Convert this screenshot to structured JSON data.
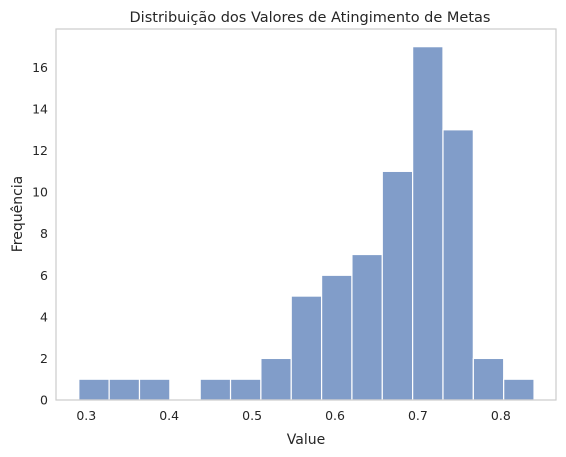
{
  "chart_data": {
    "type": "bar",
    "title": "Distribuição dos Valores de Atingimento de Metas",
    "xlabel": "Value",
    "ylabel": "Frequência",
    "xlim": [
      0.2635,
      0.8665
    ],
    "ylim": [
      0,
      17.85
    ],
    "grid": false,
    "bar_color": "#819dc9",
    "bins": [
      {
        "x0": 0.291,
        "x1": 0.3276,
        "count": 1
      },
      {
        "x0": 0.3276,
        "x1": 0.3642,
        "count": 1
      },
      {
        "x0": 0.3642,
        "x1": 0.4008,
        "count": 1
      },
      {
        "x0": 0.4008,
        "x1": 0.4374,
        "count": 0
      },
      {
        "x0": 0.4374,
        "x1": 0.474,
        "count": 1
      },
      {
        "x0": 0.474,
        "x1": 0.5106,
        "count": 1
      },
      {
        "x0": 0.5106,
        "x1": 0.5472,
        "count": 2
      },
      {
        "x0": 0.5472,
        "x1": 0.5838,
        "count": 5
      },
      {
        "x0": 0.5838,
        "x1": 0.6204,
        "count": 6
      },
      {
        "x0": 0.6204,
        "x1": 0.657,
        "count": 7
      },
      {
        "x0": 0.657,
        "x1": 0.6936,
        "count": 11
      },
      {
        "x0": 0.6936,
        "x1": 0.7302,
        "count": 17
      },
      {
        "x0": 0.7302,
        "x1": 0.7668,
        "count": 13
      },
      {
        "x0": 0.7668,
        "x1": 0.8034,
        "count": 2
      },
      {
        "x0": 0.8034,
        "x1": 0.84,
        "count": 1
      }
    ],
    "xticks": [
      0.3,
      0.4,
      0.5,
      0.6,
      0.7,
      0.8
    ],
    "xtick_labels": [
      "0.3",
      "0.4",
      "0.5",
      "0.6",
      "0.7",
      "0.8"
    ],
    "yticks": [
      0,
      2,
      4,
      6,
      8,
      10,
      12,
      14,
      16
    ],
    "ytick_labels": [
      "0",
      "2",
      "4",
      "6",
      "8",
      "10",
      "12",
      "14",
      "16"
    ]
  }
}
